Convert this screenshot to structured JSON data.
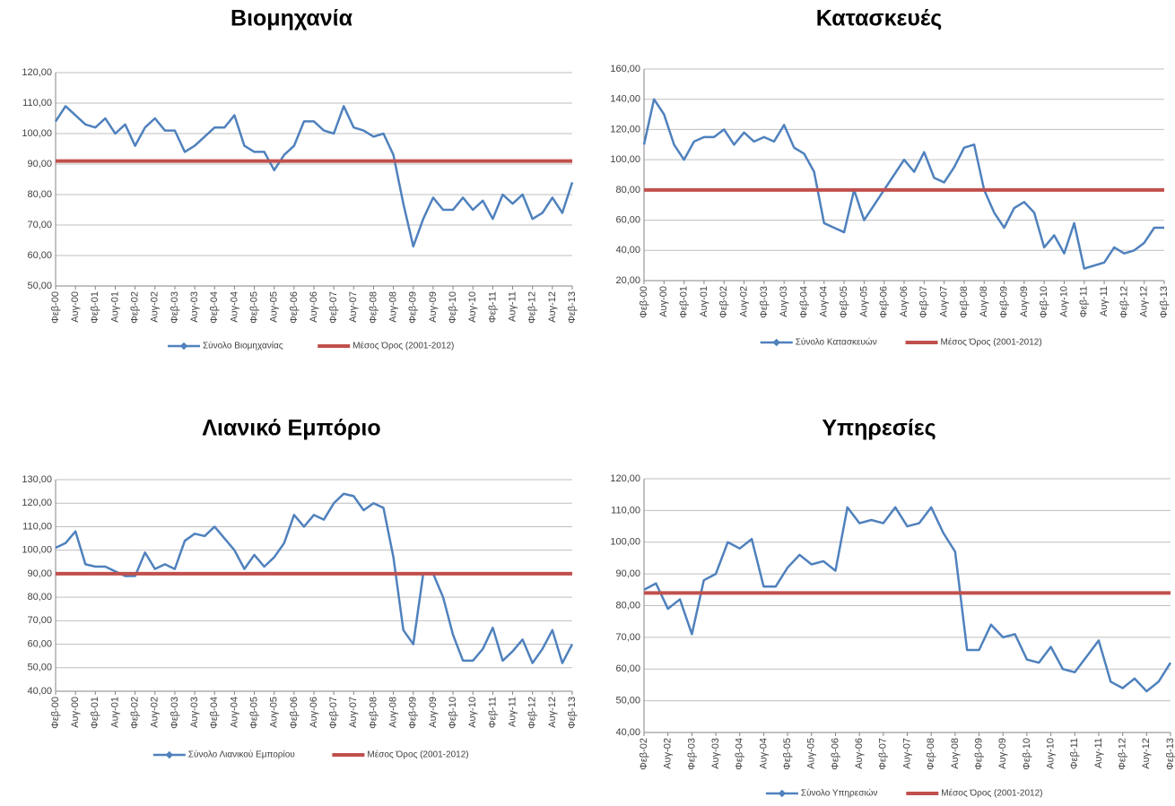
{
  "chart_data": [
    {
      "type": "line",
      "title": "Βιομηχανία",
      "categories": [
        "Φεβ-00",
        null,
        "Αυγ-00",
        null,
        "Φεβ-01",
        null,
        "Αυγ-01",
        null,
        "Φεβ-02",
        null,
        "Αυγ-02",
        null,
        "Φεβ-03",
        null,
        "Αυγ-03",
        null,
        "Φεβ-04",
        null,
        "Αυγ-04",
        null,
        "Φεβ-05",
        null,
        "Αυγ-05",
        null,
        "Φεβ-06",
        null,
        "Αυγ-06",
        null,
        "Φεβ-07",
        null,
        "Αυγ-07",
        null,
        "Φεβ-08",
        null,
        "Αυγ-08",
        null,
        "Φεβ-09",
        null,
        "Αυγ-09",
        null,
        "Φεβ-10",
        null,
        "Αυγ-10",
        null,
        "Φεβ-11",
        null,
        "Αυγ-11",
        null,
        "Φεβ-12",
        null,
        "Αυγ-12",
        null,
        "Φεβ-13"
      ],
      "series": [
        {
          "name": "Σύνολο Βιομηχανίας",
          "color": "#4f81bd",
          "values": [
            104,
            109,
            106,
            103,
            102,
            105,
            100,
            103,
            96,
            102,
            105,
            101,
            101,
            94,
            96,
            99,
            102,
            102,
            106,
            96,
            94,
            94,
            88,
            93,
            96,
            104,
            104,
            101,
            100,
            109,
            102,
            101,
            99,
            100,
            93,
            77,
            63,
            72,
            79,
            75,
            75,
            79,
            75,
            78,
            72,
            80,
            77,
            80,
            72,
            74,
            79,
            74,
            84
          ]
        },
        {
          "name": "Μέσος Όρος (2001-2012)",
          "color": "#c0504d",
          "values": [
            91,
            91,
            91,
            91,
            91,
            91,
            91,
            91,
            91,
            91,
            91,
            91,
            91,
            91,
            91,
            91,
            91,
            91,
            91,
            91,
            91,
            91,
            91,
            91,
            91,
            91,
            91,
            91,
            91,
            91,
            91,
            91,
            91,
            91,
            91,
            91,
            91,
            91,
            91,
            91,
            91,
            91,
            91,
            91,
            91,
            91,
            91,
            91,
            91,
            91,
            91,
            91,
            91
          ]
        }
      ],
      "ylim": [
        50,
        120
      ],
      "yticks": [
        {
          "value": 50,
          "label": "50,00"
        },
        {
          "value": 60,
          "label": "60,00"
        },
        {
          "value": 70,
          "label": "70,00"
        },
        {
          "value": 80,
          "label": "80,00"
        },
        {
          "value": 90,
          "label": "90,00"
        },
        {
          "value": 100,
          "label": "100,00"
        },
        {
          "value": 110,
          "label": "110,00"
        },
        {
          "value": 120,
          "label": "120,00"
        }
      ],
      "grid": true
    },
    {
      "type": "line",
      "title": "Κατασκευές",
      "categories": [
        "Φεβ-00",
        null,
        "Αυγ-00",
        null,
        "Φεβ-01",
        null,
        "Αυγ-01",
        null,
        "Φεβ-02",
        null,
        "Αυγ-02",
        null,
        "Φεβ-03",
        null,
        "Αυγ-03",
        null,
        "Φεβ-04",
        null,
        "Αυγ-04",
        null,
        "Φεβ-05",
        null,
        "Αυγ-05",
        null,
        "Φεβ-06",
        null,
        "Αυγ-06",
        null,
        "Φεβ-07",
        null,
        "Αυγ-07",
        null,
        "Φεβ-08",
        null,
        "Αυγ-08",
        null,
        "Φεβ-09",
        null,
        "Αυγ-09",
        null,
        "Φεβ-10",
        null,
        "Αυγ-10",
        null,
        "Φεβ-11",
        null,
        "Αυγ-11",
        null,
        "Φεβ-12",
        null,
        "Αυγ-12",
        null,
        "Φεβ-13"
      ],
      "series": [
        {
          "name": "Σύνολο Κατασκευών",
          "color": "#4f81bd",
          "values": [
            110,
            140,
            130,
            110,
            100,
            112,
            115,
            115,
            120,
            110,
            118,
            112,
            115,
            112,
            123,
            108,
            104,
            92,
            58,
            55,
            52,
            80,
            60,
            70,
            80,
            90,
            100,
            92,
            105,
            88,
            85,
            95,
            108,
            110,
            80,
            65,
            55,
            68,
            72,
            65,
            42,
            50,
            38,
            58,
            28,
            30,
            32,
            42,
            38,
            40,
            45,
            55,
            55
          ]
        },
        {
          "name": "Μέσος Όρος (2001-2012)",
          "color": "#c0504d",
          "values": [
            80,
            80,
            80,
            80,
            80,
            80,
            80,
            80,
            80,
            80,
            80,
            80,
            80,
            80,
            80,
            80,
            80,
            80,
            80,
            80,
            80,
            80,
            80,
            80,
            80,
            80,
            80,
            80,
            80,
            80,
            80,
            80,
            80,
            80,
            80,
            80,
            80,
            80,
            80,
            80,
            80,
            80,
            80,
            80,
            80,
            80,
            80,
            80,
            80,
            80,
            80,
            80,
            80
          ]
        }
      ],
      "ylim": [
        20,
        160
      ],
      "yticks": [
        {
          "value": 20,
          "label": "20,00"
        },
        {
          "value": 40,
          "label": "40,00"
        },
        {
          "value": 60,
          "label": "60,00"
        },
        {
          "value": 80,
          "label": "80,00"
        },
        {
          "value": 100,
          "label": "100,00"
        },
        {
          "value": 120,
          "label": "120,00"
        },
        {
          "value": 140,
          "label": "140,00"
        },
        {
          "value": 160,
          "label": "160,00"
        }
      ],
      "grid": true
    },
    {
      "type": "line",
      "title": "Λιανικό Εμπόριο",
      "categories": [
        "Φεβ-00",
        null,
        "Αυγ-00",
        null,
        "Φεβ-01",
        null,
        "Αυγ-01",
        null,
        "Φεβ-02",
        null,
        "Αυγ-02",
        null,
        "Φεβ-03",
        null,
        "Αυγ-03",
        null,
        "Φεβ-04",
        null,
        "Αυγ-04",
        null,
        "Φεβ-05",
        null,
        "Αυγ-05",
        null,
        "Φεβ-06",
        null,
        "Αυγ-06",
        null,
        "Φεβ-07",
        null,
        "Αυγ-07",
        null,
        "Φεβ-08",
        null,
        "Αυγ-08",
        null,
        "Φεβ-09",
        null,
        "Αυγ-09",
        null,
        "Φεβ-10",
        null,
        "Αυγ-10",
        null,
        "Φεβ-11",
        null,
        "Αυγ-11",
        null,
        "Φεβ-12",
        null,
        "Αυγ-12",
        null,
        "Φεβ-13"
      ],
      "series": [
        {
          "name": "Σύνολο Λιανικού Εμπορίου",
          "color": "#4f81bd",
          "values": [
            101,
            103,
            108,
            94,
            93,
            93,
            91,
            89,
            89,
            99,
            92,
            94,
            92,
            104,
            107,
            106,
            110,
            105,
            100,
            92,
            98,
            93,
            97,
            103,
            115,
            110,
            115,
            113,
            120,
            124,
            123,
            117,
            120,
            118,
            97,
            66,
            60,
            90,
            90,
            80,
            64,
            53,
            53,
            58,
            67,
            53,
            57,
            62,
            52,
            58,
            66,
            52,
            60
          ]
        },
        {
          "name": "Μέσος Όρος (2001-2012)",
          "color": "#c0504d",
          "values": [
            90,
            90,
            90,
            90,
            90,
            90,
            90,
            90,
            90,
            90,
            90,
            90,
            90,
            90,
            90,
            90,
            90,
            90,
            90,
            90,
            90,
            90,
            90,
            90,
            90,
            90,
            90,
            90,
            90,
            90,
            90,
            90,
            90,
            90,
            90,
            90,
            90,
            90,
            90,
            90,
            90,
            90,
            90,
            90,
            90,
            90,
            90,
            90,
            90,
            90,
            90,
            90,
            90
          ]
        }
      ],
      "ylim": [
        40,
        130
      ],
      "yticks": [
        {
          "value": 40,
          "label": "40,00"
        },
        {
          "value": 50,
          "label": "50,00"
        },
        {
          "value": 60,
          "label": "60,00"
        },
        {
          "value": 70,
          "label": "70,00"
        },
        {
          "value": 80,
          "label": "80,00"
        },
        {
          "value": 90,
          "label": "90,00"
        },
        {
          "value": 100,
          "label": "100,00"
        },
        {
          "value": 110,
          "label": "110,00"
        },
        {
          "value": 120,
          "label": "120,00"
        },
        {
          "value": 130,
          "label": "130,00"
        }
      ],
      "grid": true
    },
    {
      "type": "line",
      "title": "Υπηρεσίες",
      "categories": [
        "Φεβ-02",
        null,
        "Αυγ-02",
        null,
        "Φεβ-03",
        null,
        "Αυγ-03",
        null,
        "Φεβ-04",
        null,
        "Αυγ-04",
        null,
        "Φεβ-05",
        null,
        "Αυγ-05",
        null,
        "Φεβ-06",
        null,
        "Αυγ-06",
        null,
        "Φεβ-07",
        null,
        "Αυγ-07",
        null,
        "Φεβ-08",
        null,
        "Αυγ-08",
        null,
        "Φεβ-09",
        null,
        "Αυγ-09",
        null,
        "Φεβ-10",
        null,
        "Αυγ-10",
        null,
        "Φεβ-11",
        null,
        "Αυγ-11",
        null,
        "Φεβ-12",
        null,
        "Αυγ-12",
        null,
        "Φεβ-13"
      ],
      "series": [
        {
          "name": "Σύνολο Υπηρεσιών",
          "color": "#4f81bd",
          "values": [
            85,
            87,
            79,
            82,
            71,
            88,
            90,
            100,
            98,
            101,
            86,
            86,
            92,
            96,
            93,
            94,
            91,
            111,
            106,
            107,
            106,
            111,
            105,
            106,
            111,
            103,
            97,
            66,
            66,
            74,
            70,
            71,
            63,
            62,
            67,
            60,
            59,
            64,
            69,
            56,
            54,
            57,
            53,
            56,
            62
          ]
        },
        {
          "name": "Μέσος Όρος (2001-2012)",
          "color": "#c0504d",
          "values": [
            84,
            84,
            84,
            84,
            84,
            84,
            84,
            84,
            84,
            84,
            84,
            84,
            84,
            84,
            84,
            84,
            84,
            84,
            84,
            84,
            84,
            84,
            84,
            84,
            84,
            84,
            84,
            84,
            84,
            84,
            84,
            84,
            84,
            84,
            84,
            84,
            84,
            84,
            84,
            84,
            84,
            84,
            84,
            84,
            84
          ]
        }
      ],
      "ylim": [
        40,
        120
      ],
      "yticks": [
        {
          "value": 40,
          "label": "40,00"
        },
        {
          "value": 50,
          "label": "50,00"
        },
        {
          "value": 60,
          "label": "60,00"
        },
        {
          "value": 70,
          "label": "70,00"
        },
        {
          "value": 80,
          "label": "80,00"
        },
        {
          "value": 90,
          "label": "90,00"
        },
        {
          "value": 100,
          "label": "100,00"
        },
        {
          "value": 110,
          "label": "110,00"
        },
        {
          "value": 120,
          "label": "120,00"
        }
      ],
      "grid": true
    }
  ]
}
